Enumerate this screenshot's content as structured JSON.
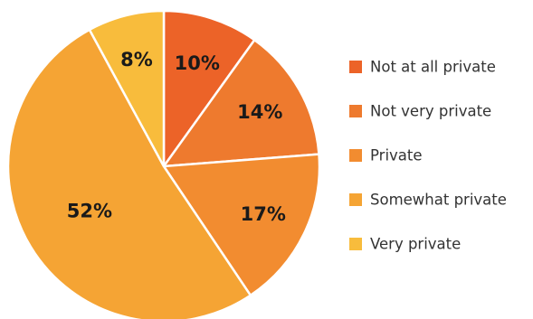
{
  "chart_data": {
    "type": "pie",
    "title": "",
    "legend_position": "right",
    "slices": [
      {
        "label": "Not at all private",
        "value": 10,
        "display": "10%",
        "color": "#EC6328"
      },
      {
        "label": "Not very private",
        "value": 14,
        "display": "14%",
        "color": "#EE7A2E"
      },
      {
        "label": "Private",
        "value": 17,
        "display": "17%",
        "color": "#F28C30"
      },
      {
        "label": "Somewhat private",
        "value": 52,
        "display": "52%",
        "color": "#F5A434"
      },
      {
        "label": "Very private",
        "value": 8,
        "display": "8%",
        "color": "#F8BC3C"
      }
    ]
  }
}
